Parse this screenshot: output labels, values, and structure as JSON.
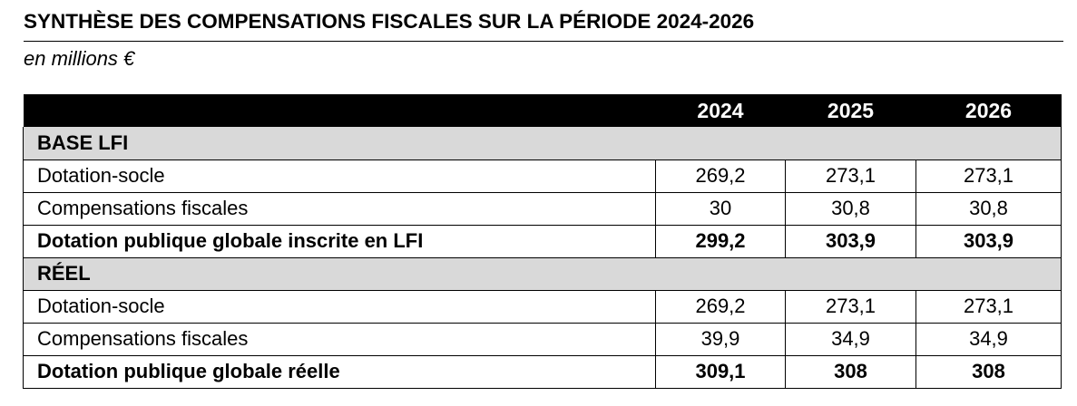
{
  "title": "SYNTHÈSE DES COMPENSATIONS FISCALES SUR LA PÉRIODE 2024-2026",
  "subtitle": "en millions €",
  "table": {
    "header": {
      "label": "",
      "years": [
        "2024",
        "2025",
        "2026"
      ]
    },
    "sections": [
      {
        "name": "BASE LFI",
        "rows": [
          {
            "label": "Dotation-socle",
            "values": [
              "269,2",
              "273,1",
              "273,1"
            ],
            "bold": false
          },
          {
            "label": "Compensations fiscales",
            "values": [
              "30",
              "30,8",
              "30,8"
            ],
            "bold": false
          },
          {
            "label": "Dotation publique globale inscrite en LFI",
            "values": [
              "299,2",
              "303,9",
              "303,9"
            ],
            "bold": true
          }
        ]
      },
      {
        "name": "RÉEL",
        "rows": [
          {
            "label": "Dotation-socle",
            "values": [
              "269,2",
              "273,1",
              "273,1"
            ],
            "bold": false
          },
          {
            "label": "Compensations fiscales",
            "values": [
              "39,9",
              "34,9",
              "34,9"
            ],
            "bold": false
          },
          {
            "label": "Dotation publique globale réelle",
            "values": [
              "309,1",
              "308",
              "308"
            ],
            "bold": true
          }
        ]
      }
    ]
  },
  "colors": {
    "header_bg": "#000000",
    "header_text": "#ffffff",
    "section_bg": "#d9d9d9",
    "border": "#000000"
  }
}
